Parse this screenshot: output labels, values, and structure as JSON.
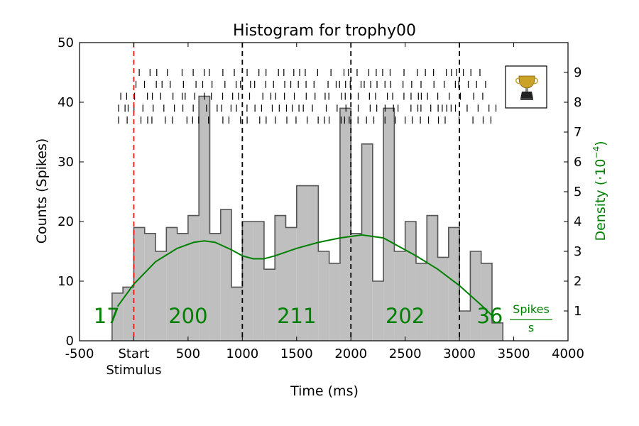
{
  "chart_data": {
    "type": "bar",
    "title": "Histogram for trophy00",
    "xlabel": "Time (ms)",
    "ylabel": "Counts (Spikes)",
    "y2label": "Density (·10",
    "y2label_exp": "−4",
    "y2label_close": ")",
    "xlim": [
      -500,
      4000
    ],
    "ylim": [
      0,
      50
    ],
    "y2lim": [
      0,
      10
    ],
    "x_ticks": [
      {
        "value": -500,
        "label": "-500"
      },
      {
        "value": 0,
        "label": "Start"
      },
      {
        "value": 500,
        "label": "500"
      },
      {
        "value": 1000,
        "label": "1000"
      },
      {
        "value": 1500,
        "label": "1500"
      },
      {
        "value": 2000,
        "label": "2000"
      },
      {
        "value": 2500,
        "label": "2500"
      },
      {
        "value": 3000,
        "label": "3000"
      },
      {
        "value": 3500,
        "label": "3500"
      },
      {
        "value": 4000,
        "label": "4000"
      }
    ],
    "x_tick_sublabel": "Stimulus",
    "y_ticks": [
      0,
      10,
      20,
      30,
      40,
      50
    ],
    "y2_ticks": [
      1,
      2,
      3,
      4,
      5,
      6,
      7,
      8,
      9
    ],
    "bin_width": 100,
    "bin_start": -200,
    "histogram_values": [
      8,
      9,
      19,
      18,
      15,
      19,
      18,
      21,
      41,
      18,
      22,
      9,
      20,
      20,
      12,
      21,
      19,
      26,
      26,
      15,
      13,
      39,
      18,
      33,
      10,
      39,
      15,
      20,
      13,
      21,
      14,
      19,
      5,
      15,
      13,
      3
    ],
    "density_series": {
      "name": "",
      "color": "#008000",
      "x": [
        -150,
        0,
        200,
        400,
        550,
        650,
        750,
        900,
        1000,
        1100,
        1200,
        1300,
        1500,
        1700,
        1900,
        2000,
        2100,
        2200,
        2300,
        2450,
        2600,
        2800,
        3000,
        3200,
        3300
      ],
      "y": [
        1.15,
        1.9,
        2.65,
        3.1,
        3.3,
        3.35,
        3.3,
        3.05,
        2.85,
        2.75,
        2.75,
        2.85,
        3.1,
        3.3,
        3.45,
        3.5,
        3.55,
        3.5,
        3.45,
        3.15,
        2.85,
        2.4,
        1.85,
        1.2,
        0.85
      ]
    },
    "stimulus_line": {
      "x": 0,
      "color": "#ff0000"
    },
    "boundary_lines": [
      1000,
      2000,
      3000
    ],
    "segment_counts": [
      {
        "x": -250,
        "label": "17"
      },
      {
        "x": 500,
        "label": "200"
      },
      {
        "x": 1500,
        "label": "211"
      },
      {
        "x": 2500,
        "label": "202"
      },
      {
        "x": 3280,
        "label": "36"
      }
    ],
    "rate_unit": {
      "numerator": "Spikes",
      "denominator": "s"
    },
    "raster_rows": [
      {
        "y2": 9.0,
        "start": 50,
        "end": 3200,
        "density": 38
      },
      {
        "y2": 8.6,
        "start": 20,
        "end": 3300,
        "density": 40
      },
      {
        "y2": 8.2,
        "start": -120,
        "end": 3300,
        "density": 46
      },
      {
        "y2": 7.8,
        "start": -140,
        "end": 3350,
        "density": 44
      },
      {
        "y2": 7.4,
        "start": -140,
        "end": 3300,
        "density": 42
      }
    ],
    "colors": {
      "bars_fill": "#bfbfbf",
      "bars_edge": "#555555",
      "density": "#008000",
      "stimulus": "#ff0000",
      "boundary": "#000000"
    },
    "legend": {
      "placement": "top-right",
      "icon": "trophy-icon"
    }
  }
}
